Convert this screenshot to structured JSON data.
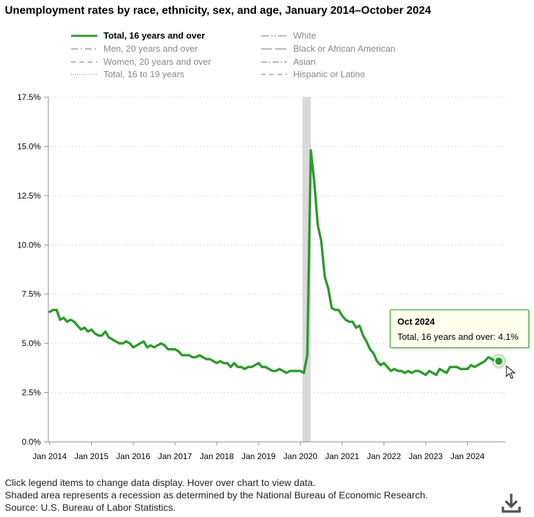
{
  "title": "Unemployment rates by race, ethnicity, sex, and age, January 2014–October 2024",
  "legend": [
    {
      "label": "Total, 16 years and over",
      "style": "solid",
      "active": true,
      "color": "#2c9a2c"
    },
    {
      "label": "Men, 20 years and over",
      "style": "dashdot",
      "active": false,
      "color": "#9e9e9e"
    },
    {
      "label": "Women, 20 years and over",
      "style": "dashed",
      "active": false,
      "color": "#9e9e9e"
    },
    {
      "label": "Total, 16 to 19 years",
      "style": "dotted",
      "active": false,
      "color": "#9e9e9e"
    },
    {
      "label": "White",
      "style": "dashdotdot",
      "active": false,
      "color": "#9e9e9e"
    },
    {
      "label": "Black or African American",
      "style": "longdash",
      "active": false,
      "color": "#9e9e9e"
    },
    {
      "label": "Asian",
      "style": "dashdotdot2",
      "active": false,
      "color": "#9e9e9e"
    },
    {
      "label": "Hispanic or Latino",
      "style": "dashed2",
      "active": false,
      "color": "#9e9e9e"
    }
  ],
  "tooltip": {
    "date": "Oct 2024",
    "text": "Total, 16 years and over: 4.1%"
  },
  "footnotes": [
    "Click legend items to change data display. Hover over chart to view data.",
    "Shaded area represents a recession as determined by the National Bureau of Economic Research.",
    "Source: U.S. Bureau of Labor Statistics."
  ],
  "icons": {
    "download": "download-icon",
    "cursor": "mouse-pointer-icon"
  },
  "chart_data": {
    "type": "line",
    "xlabel": "",
    "ylabel": "",
    "ylim": [
      0,
      17.5
    ],
    "yticks": [
      "0.0%",
      "2.5%",
      "5.0%",
      "7.5%",
      "10.0%",
      "12.5%",
      "15.0%",
      "17.5%"
    ],
    "xticks": [
      "Jan 2014",
      "Jan 2015",
      "Jan 2016",
      "Jan 2017",
      "Jan 2018",
      "Jan 2019",
      "Jan 2020",
      "Jan 2021",
      "Jan 2022",
      "Jan 2023",
      "Jan 2024"
    ],
    "x_range": [
      "Jan 2014",
      "Oct 2024"
    ],
    "grid": "horizontal dotted",
    "recession": {
      "start": "Feb 2020",
      "end": "Apr 2020",
      "color": "#d9d9d9"
    },
    "series": [
      {
        "name": "Total, 16 years and over",
        "color": "#2c9a2c",
        "values": [
          6.6,
          6.7,
          6.7,
          6.2,
          6.3,
          6.1,
          6.2,
          6.1,
          5.9,
          5.7,
          5.8,
          5.6,
          5.7,
          5.5,
          5.4,
          5.4,
          5.6,
          5.3,
          5.2,
          5.1,
          5.0,
          5.0,
          5.1,
          5.0,
          4.8,
          4.9,
          5.0,
          5.1,
          4.8,
          4.9,
          4.8,
          4.9,
          5.0,
          4.9,
          4.7,
          4.7,
          4.7,
          4.6,
          4.4,
          4.4,
          4.4,
          4.3,
          4.3,
          4.4,
          4.3,
          4.2,
          4.2,
          4.1,
          4.0,
          4.1,
          4.0,
          4.0,
          3.8,
          4.0,
          3.8,
          3.8,
          3.7,
          3.8,
          3.8,
          3.9,
          4.0,
          3.8,
          3.8,
          3.7,
          3.6,
          3.6,
          3.7,
          3.6,
          3.5,
          3.6,
          3.6,
          3.6,
          3.6,
          3.5,
          4.4,
          14.8,
          13.2,
          11.0,
          10.2,
          8.4,
          7.8,
          6.8,
          6.7,
          6.7,
          6.4,
          6.2,
          6.1,
          6.1,
          5.8,
          5.9,
          5.4,
          5.1,
          4.7,
          4.5,
          4.1,
          3.9,
          4.0,
          3.8,
          3.6,
          3.7,
          3.6,
          3.6,
          3.5,
          3.6,
          3.5,
          3.6,
          3.6,
          3.5,
          3.4,
          3.6,
          3.5,
          3.4,
          3.7,
          3.6,
          3.5,
          3.8,
          3.8,
          3.8,
          3.7,
          3.7,
          3.7,
          3.9,
          3.8,
          3.9,
          4.0,
          4.1,
          4.3,
          4.2,
          4.1,
          4.1
        ]
      }
    ],
    "highlight": {
      "label": "Oct 2024",
      "value": 4.1
    }
  }
}
